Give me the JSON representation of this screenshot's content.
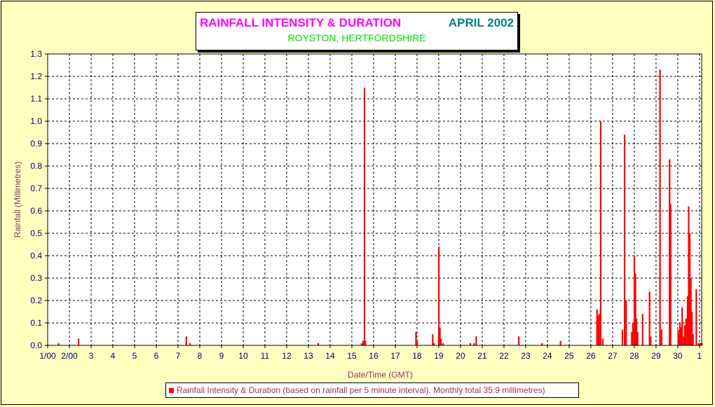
{
  "title": {
    "main": "RAINFALL INTENSITY & DURATION",
    "month": "APRIL 2002",
    "subtitle": "ROYSTON, HERTFORDSHIRE"
  },
  "legend": {
    "text": "Rainfall Intensity & Duration (based on rainfall per 5 minute interval). Monthly total 35.9 millimetres)"
  },
  "colors": {
    "background": "#ffffc0",
    "bars": "#ff0000",
    "title_main": "#ff00ff",
    "title_month": "#008080",
    "subtitle": "#00dd00",
    "axis_labels": "#993366",
    "ticks": "#000080"
  },
  "chart_data": {
    "type": "bar",
    "title": "RAINFALL INTENSITY & DURATION",
    "xlabel": "Date/Time (GMT)",
    "ylabel": "Rainfall (Millimetres)",
    "xlim": [
      1,
      31.1
    ],
    "ylim": [
      0,
      1.3
    ],
    "grid": true,
    "legend_position": "bottom",
    "x_ticks": [
      {
        "x": 1,
        "label": "1/00"
      },
      {
        "x": 2,
        "label": "2/00"
      },
      {
        "x": 3,
        "label": "3"
      },
      {
        "x": 4,
        "label": "4"
      },
      {
        "x": 5,
        "label": "5"
      },
      {
        "x": 6,
        "label": "6"
      },
      {
        "x": 7,
        "label": "7"
      },
      {
        "x": 8,
        "label": "8"
      },
      {
        "x": 9,
        "label": "9"
      },
      {
        "x": 10,
        "label": "10"
      },
      {
        "x": 11,
        "label": "11"
      },
      {
        "x": 12,
        "label": "12"
      },
      {
        "x": 13,
        "label": "13"
      },
      {
        "x": 14,
        "label": "14"
      },
      {
        "x": 15,
        "label": "15"
      },
      {
        "x": 16,
        "label": "16"
      },
      {
        "x": 17,
        "label": "17"
      },
      {
        "x": 18,
        "label": "18"
      },
      {
        "x": 19,
        "label": "19"
      },
      {
        "x": 20,
        "label": "20"
      },
      {
        "x": 21,
        "label": "21"
      },
      {
        "x": 22,
        "label": "22"
      },
      {
        "x": 23,
        "label": "23"
      },
      {
        "x": 24,
        "label": "24"
      },
      {
        "x": 25,
        "label": "25"
      },
      {
        "x": 26,
        "label": "26"
      },
      {
        "x": 27,
        "label": "27"
      },
      {
        "x": 28,
        "label": "28"
      },
      {
        "x": 29,
        "label": "29"
      },
      {
        "x": 30,
        "label": "30"
      },
      {
        "x": 31,
        "label": "1"
      }
    ],
    "y_ticks": [
      "0.0",
      "0.1",
      "0.2",
      "0.3",
      "0.4",
      "0.5",
      "0.6",
      "0.7",
      "0.8",
      "0.9",
      "1.0",
      "1.1",
      "1.2",
      "1.3"
    ],
    "series": [
      {
        "name": "Rainfall Intensity & Duration (based on rainfall per 5 minute interval). Monthly total 35.9 millimetres)",
        "x": [
          1.5,
          2.42,
          7.38,
          7.55,
          13.45,
          15.45,
          15.52,
          15.58,
          15.62,
          17.95,
          18.0,
          18.72,
          18.78,
          19.0,
          19.05,
          19.1,
          19.2,
          20.45,
          20.62,
          20.72,
          22.68,
          23.75,
          24.6,
          26.28,
          26.32,
          26.38,
          26.45,
          26.55,
          27.45,
          27.55,
          27.62,
          27.88,
          27.93,
          28.0,
          28.05,
          28.1,
          28.15,
          28.38,
          28.7,
          28.75,
          29.18,
          29.25,
          29.62,
          29.67,
          30.02,
          30.06,
          30.1,
          30.15,
          30.2,
          30.25,
          30.32,
          30.38,
          30.45,
          30.5,
          30.55,
          30.6,
          30.65,
          30.7,
          30.85,
          30.95,
          31.0,
          31.05,
          31.1
        ],
        "values": [
          0.01,
          0.03,
          0.04,
          0.01,
          0.01,
          0.01,
          0.02,
          1.15,
          0.02,
          0.06,
          0.02,
          0.05,
          0.01,
          0.44,
          0.08,
          0.03,
          0.01,
          0.01,
          0.01,
          0.04,
          0.04,
          0.01,
          0.02,
          0.16,
          0.13,
          0.14,
          1.0,
          0.03,
          0.07,
          0.94,
          0.2,
          0.06,
          0.1,
          0.4,
          0.32,
          0.12,
          0.06,
          0.14,
          0.24,
          0.04,
          1.23,
          0.07,
          0.83,
          0.63,
          0.07,
          0.05,
          0.1,
          0.08,
          0.17,
          0.04,
          0.09,
          0.12,
          0.22,
          0.62,
          0.5,
          0.3,
          0.15,
          0.05,
          0.25,
          0.01,
          0.01,
          0.01,
          0.01
        ]
      }
    ]
  }
}
